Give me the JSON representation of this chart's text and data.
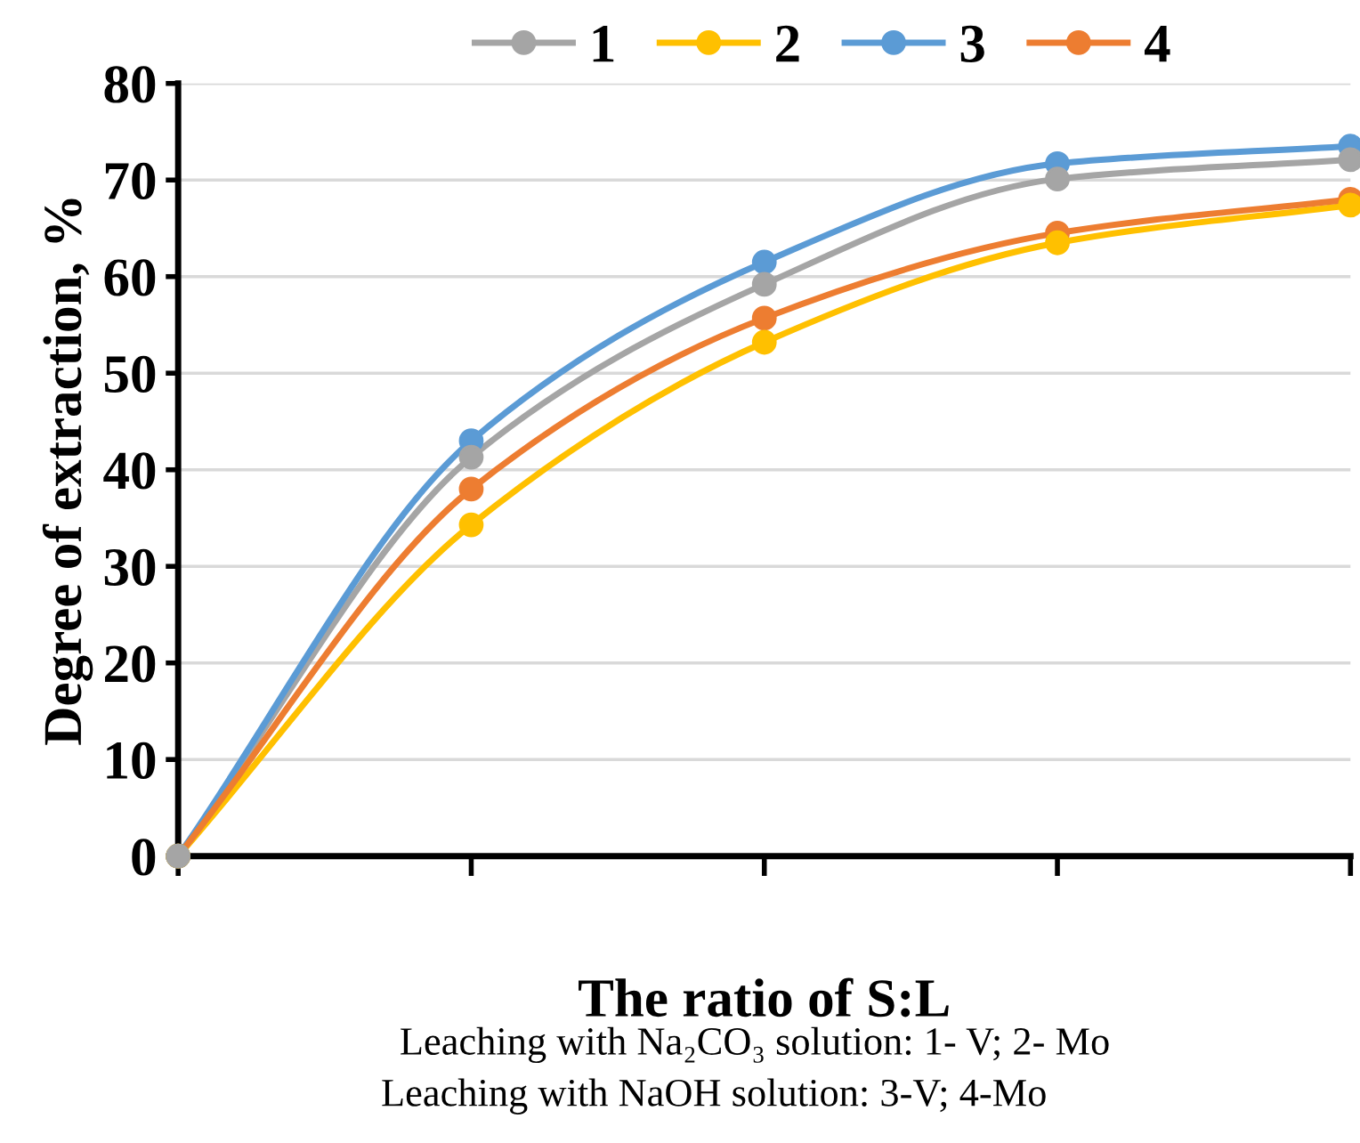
{
  "chart_data": {
    "type": "line",
    "xlabel": "The ratio of S:L",
    "ylabel": "Degree of extraction, %",
    "categories": [
      null,
      null,
      null,
      null,
      null
    ],
    "series": [
      {
        "name": "1",
        "color": "#a5a5a5",
        "values": [
          0,
          41.3,
          59.2,
          70.1,
          72.1
        ]
      },
      {
        "name": "2",
        "color": "#ffc000",
        "values": [
          0,
          34.3,
          53.2,
          63.5,
          67.4
        ]
      },
      {
        "name": "3",
        "color": "#5b9bd5",
        "values": [
          0,
          43.0,
          61.5,
          71.7,
          73.5
        ]
      },
      {
        "name": "4",
        "color": "#ed7d31",
        "values": [
          0,
          38.0,
          55.7,
          64.5,
          68.0
        ]
      }
    ],
    "ylim": [
      0,
      80
    ],
    "yticks": [
      0,
      10,
      20,
      30,
      40,
      50,
      60,
      70,
      80
    ],
    "grid": "y",
    "legend": "top",
    "marker": "circle",
    "line_style": "solid",
    "annotations": [
      "Leaching with Na₂CO₃ solution: 1- V; 2- Mo",
      "Leaching with NaOH solution: 3-V; 4-Mo"
    ]
  }
}
